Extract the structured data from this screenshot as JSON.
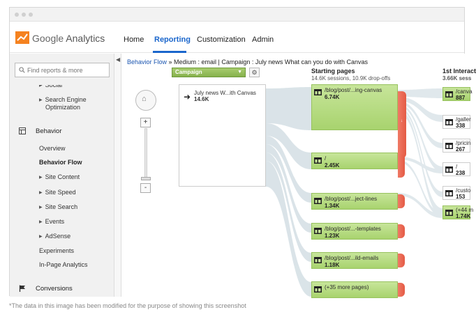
{
  "window": {
    "title": ""
  },
  "header": {
    "logo_google": "Google",
    "logo_product": "Analytics",
    "nav": [
      {
        "label": "Home",
        "active": false
      },
      {
        "label": "Reporting",
        "active": true
      },
      {
        "label": "Customization",
        "active": false
      },
      {
        "label": "Admin",
        "active": false
      }
    ]
  },
  "sidebar": {
    "search_placeholder": "Find reports & more",
    "items": {
      "social": "Social",
      "search_engine_opt_1": "Search Engine",
      "search_engine_opt_2": "Optimization",
      "behavior": "Behavior",
      "overview": "Overview",
      "behavior_flow": "Behavior Flow",
      "site_content": "Site Content",
      "site_speed": "Site Speed",
      "site_search": "Site Search",
      "events": "Events",
      "adsense": "AdSense",
      "experiments": "Experiments",
      "in_page": "In-Page Analytics",
      "conversions": "Conversions"
    }
  },
  "content": {
    "breadcrumb_link": "Behavior Flow",
    "breadcrumb_rest": " » Medium : email | Campaign : July news What can you do with Canvas",
    "campaign_dropdown": "Campaign",
    "source_node": {
      "label": "July news W...ith Canvas",
      "value": "14.6K"
    },
    "starting_pages": {
      "title": "Starting pages",
      "subtitle": "14.6K sessions, 10.9K drop-offs",
      "nodes": [
        {
          "label": "/blog/post/...ing-canvas",
          "value": "6.74K"
        },
        {
          "label": "/",
          "value": "2.45K"
        },
        {
          "label": "/blog/post/...ject-lines",
          "value": "1.34K"
        },
        {
          "label": "/blog/post/...-templates",
          "value": "1.23K"
        },
        {
          "label": "/blog/post/...ild-emails",
          "value": "1.18K"
        },
        {
          "label": "(+35 more pages)",
          "value": ""
        }
      ]
    },
    "first_interaction": {
      "title": "1st Interact",
      "subtitle": "3.66K sess",
      "nodes": [
        {
          "label": "/canva",
          "value": "887"
        },
        {
          "label": "/galler",
          "value": "338"
        },
        {
          "label": "/pricin",
          "value": "267"
        },
        {
          "label": "/",
          "value": "238"
        },
        {
          "label": "/custo",
          "value": "153"
        },
        {
          "label": "(+44 m",
          "value": "1.74K"
        }
      ]
    }
  },
  "caption": "*The data in this image has been modified for the purpose of showing this screenshot"
}
